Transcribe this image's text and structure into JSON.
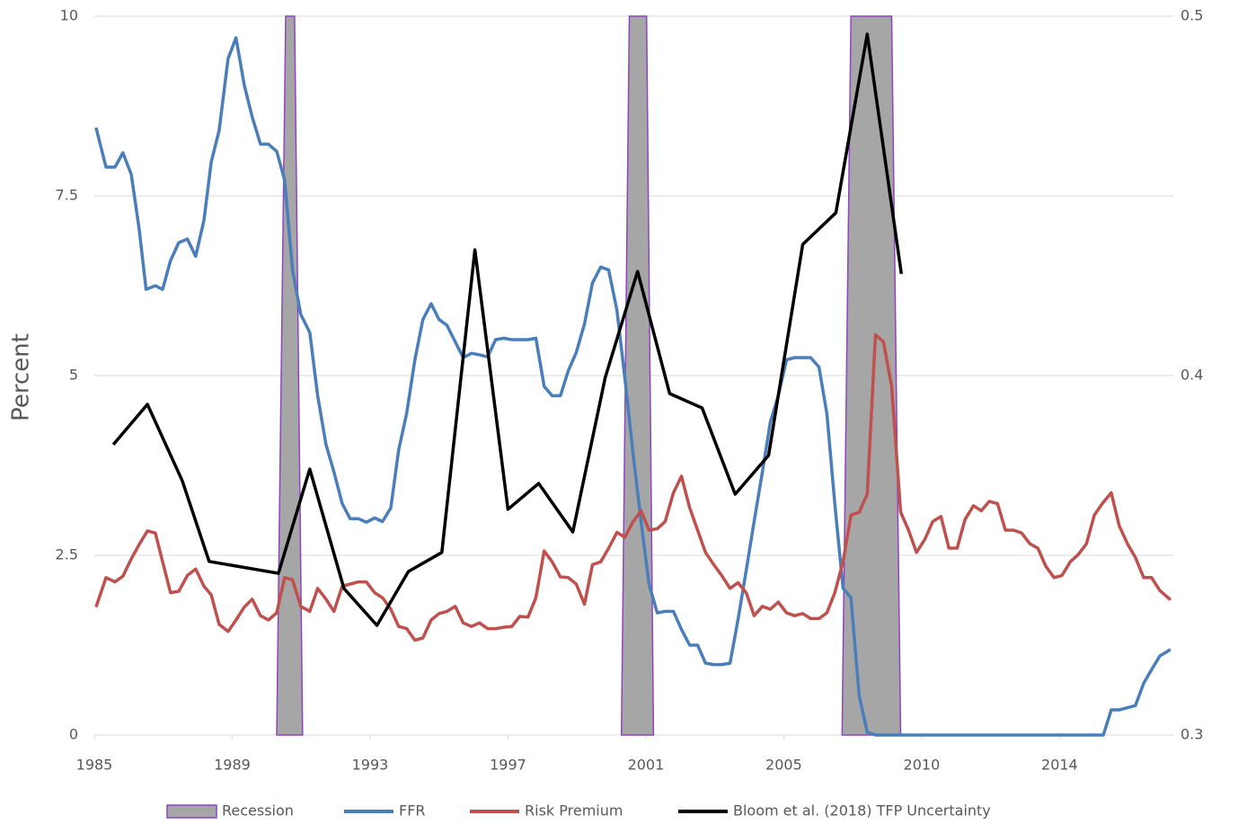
{
  "chart_data": {
    "type": "line",
    "y_label": "Percent",
    "xlim": [
      1985,
      2016.3
    ],
    "xticks": [
      1985,
      1989,
      1993,
      1997,
      2001,
      2005,
      {
        "value": 2009,
        "label": "2010"
      },
      {
        "value": 2013,
        "label": "2014"
      }
    ],
    "ylim": [
      0,
      10
    ],
    "yticks": [
      0,
      2.5,
      5,
      7.5,
      10
    ],
    "y2lim": [
      0.3,
      0.5
    ],
    "y2ticks": [
      0.3,
      0.4,
      0.5
    ],
    "grid": true,
    "legend": "bottom",
    "series": [
      {
        "name": "Recession",
        "kind": "area",
        "color": "#a6a6a6",
        "edge_color": "#8e44c4",
        "x": [
          1990.29,
          1990.55,
          1990.81,
          1991.04,
          null,
          2000.29,
          2000.52,
          2001.02,
          2001.22,
          null,
          2006.69,
          2006.95,
          2008.13,
          2008.39
        ],
        "values": [
          0,
          10,
          10,
          0,
          null,
          0,
          10,
          10,
          0,
          null,
          0,
          10,
          10,
          0
        ]
      },
      {
        "name": "FFR",
        "color": "#4a7ebb",
        "x": [
          1985.05,
          1985.34,
          1985.6,
          1985.83,
          1986.07,
          1986.3,
          1986.5,
          1986.77,
          1986.98,
          1987.21,
          1987.45,
          1987.7,
          1987.94,
          1988.18,
          1988.39,
          1988.62,
          1988.88,
          1989.11,
          1989.35,
          1989.58,
          1989.82,
          1990.05,
          1990.29,
          1990.52,
          1990.75,
          1990.99,
          1991.25,
          1991.48,
          1991.72,
          1991.95,
          1992.19,
          1992.42,
          1992.66,
          1992.89,
          1993.13,
          1993.36,
          1993.6,
          1993.83,
          1994.06,
          1994.3,
          1994.53,
          1994.77,
          1995.0,
          1995.23,
          1995.47,
          1995.7,
          1995.94,
          1996.17,
          1996.41,
          1996.64,
          1996.88,
          1997.11,
          1997.34,
          1997.58,
          1997.81,
          1998.05,
          1998.28,
          1998.52,
          1998.75,
          1998.98,
          1999.22,
          1999.45,
          1999.69,
          1999.92,
          2000.16,
          2000.39,
          2000.63,
          2000.86,
          2001.09,
          2001.33,
          2001.56,
          2001.8,
          2002.03,
          2002.27,
          2002.5,
          2002.73,
          2002.97,
          2003.2,
          2003.44,
          2003.67,
          2003.91,
          2004.14,
          2004.38,
          2004.61,
          2004.84,
          2005.08,
          2005.31,
          2005.55,
          2005.78,
          2006.02,
          2006.25,
          2006.48,
          2006.72,
          2006.95,
          2007.19,
          2007.42,
          2007.66,
          2014.27,
          2014.5,
          2014.73,
          2014.97,
          2015.2,
          2015.44,
          2015.67,
          2015.91,
          2016.22
        ],
        "values": [
          8.45,
          7.9,
          7.9,
          8.1,
          7.8,
          7.04,
          6.2,
          6.25,
          6.2,
          6.6,
          6.85,
          6.9,
          6.66,
          7.16,
          7.97,
          8.41,
          9.41,
          9.7,
          9.04,
          8.6,
          8.22,
          8.22,
          8.12,
          7.72,
          6.47,
          5.85,
          5.6,
          4.72,
          4.04,
          3.66,
          3.22,
          3.01,
          3.01,
          2.96,
          3.02,
          2.97,
          3.16,
          3.97,
          4.47,
          5.22,
          5.78,
          6.0,
          5.78,
          5.7,
          5.47,
          5.25,
          5.31,
          5.29,
          5.26,
          5.5,
          5.52,
          5.5,
          5.5,
          5.5,
          5.52,
          4.85,
          4.72,
          4.72,
          5.07,
          5.32,
          5.72,
          6.29,
          6.51,
          6.47,
          5.91,
          4.97,
          3.91,
          2.97,
          2.1,
          1.7,
          1.72,
          1.72,
          1.47,
          1.25,
          1.25,
          1.0,
          0.98,
          0.98,
          1.0,
          1.6,
          2.29,
          2.97,
          3.66,
          4.35,
          4.72,
          5.22,
          5.25,
          5.25,
          5.25,
          5.12,
          4.47,
          3.22,
          2.04,
          1.91,
          0.54,
          0.04,
          0,
          0,
          0.35,
          0.35,
          0.38,
          0.41,
          0.72,
          0.91,
          1.1,
          1.19
        ]
      },
      {
        "name": "Risk Premium",
        "color": "#c0504d",
        "x": [
          1985.05,
          1985.34,
          1985.6,
          1985.83,
          1986.07,
          1986.3,
          1986.54,
          1986.77,
          1986.98,
          1987.21,
          1987.45,
          1987.7,
          1987.94,
          1988.18,
          1988.39,
          1988.62,
          1988.88,
          1989.11,
          1989.35,
          1989.58,
          1989.82,
          1990.05,
          1990.29,
          1990.52,
          1990.75,
          1990.99,
          1991.25,
          1991.48,
          1991.72,
          1991.95,
          1992.19,
          1992.42,
          1992.66,
          1992.89,
          1993.13,
          1993.36,
          1993.6,
          1993.83,
          1994.06,
          1994.3,
          1994.53,
          1994.77,
          1995.0,
          1995.23,
          1995.47,
          1995.7,
          1995.94,
          1996.17,
          1996.41,
          1996.64,
          1996.88,
          1997.11,
          1997.34,
          1997.58,
          1997.81,
          1998.05,
          1998.28,
          1998.52,
          1998.75,
          1998.98,
          1999.22,
          1999.45,
          1999.69,
          1999.92,
          2000.16,
          2000.39,
          2000.63,
          2000.86,
          2001.09,
          2001.33,
          2001.56,
          2001.8,
          2002.03,
          2002.27,
          2002.5,
          2002.73,
          2002.97,
          2003.2,
          2003.44,
          2003.67,
          2003.91,
          2004.14,
          2004.38,
          2004.61,
          2004.84,
          2005.08,
          2005.31,
          2005.55,
          2005.78,
          2006.02,
          2006.25,
          2006.48,
          2006.72,
          2006.95,
          2007.19,
          2007.42,
          2007.66,
          2007.89,
          2008.13,
          2008.39,
          2008.62,
          2008.85,
          2009.09,
          2009.32,
          2009.56,
          2009.79,
          2010.03,
          2010.26,
          2010.5,
          2010.73,
          2010.96,
          2011.2,
          2011.43,
          2011.67,
          2011.9,
          2012.14,
          2012.37,
          2012.6,
          2012.84,
          2013.07,
          2013.31,
          2013.54,
          2013.78,
          2014.01,
          2014.24,
          2014.5,
          2014.73,
          2014.97,
          2015.2,
          2015.44,
          2015.67,
          2015.91,
          2016.22
        ],
        "values": [
          1.78,
          2.19,
          2.13,
          2.21,
          2.45,
          2.65,
          2.84,
          2.81,
          2.41,
          1.98,
          2.0,
          2.22,
          2.31,
          2.07,
          1.95,
          1.54,
          1.44,
          1.6,
          1.78,
          1.89,
          1.66,
          1.6,
          1.7,
          2.19,
          2.16,
          1.79,
          1.72,
          2.04,
          1.89,
          1.72,
          2.07,
          2.1,
          2.13,
          2.13,
          1.98,
          1.91,
          1.75,
          1.51,
          1.48,
          1.32,
          1.35,
          1.6,
          1.69,
          1.72,
          1.79,
          1.56,
          1.51,
          1.56,
          1.48,
          1.48,
          1.5,
          1.51,
          1.65,
          1.64,
          1.91,
          2.56,
          2.41,
          2.2,
          2.19,
          2.1,
          1.82,
          2.37,
          2.41,
          2.6,
          2.82,
          2.75,
          2.97,
          3.12,
          2.85,
          2.87,
          2.97,
          3.37,
          3.6,
          3.16,
          2.85,
          2.54,
          2.37,
          2.22,
          2.04,
          2.12,
          1.98,
          1.66,
          1.79,
          1.75,
          1.85,
          1.7,
          1.66,
          1.69,
          1.62,
          1.62,
          1.7,
          1.98,
          2.41,
          3.06,
          3.1,
          3.35,
          5.57,
          5.47,
          4.85,
          3.1,
          2.85,
          2.54,
          2.72,
          2.97,
          3.04,
          2.6,
          2.6,
          3.0,
          3.19,
          3.12,
          3.25,
          3.22,
          2.85,
          2.85,
          2.81,
          2.66,
          2.6,
          2.35,
          2.19,
          2.22,
          2.41,
          2.51,
          2.66,
          3.06,
          3.22,
          3.37,
          2.91,
          2.66,
          2.47,
          2.19,
          2.19,
          2.01,
          1.88
        ]
      },
      {
        "name": "Bloom et al. (2018) TFP Uncertainty",
        "color": "#000000",
        "axis": "y2",
        "x": [
          1985.55,
          1986.54,
          1987.55,
          1988.33,
          1990.34,
          1991.25,
          1992.24,
          1993.2,
          1994.11,
          1995.08,
          1996.04,
          1997.0,
          1997.89,
          1998.88,
          1999.82,
          2000.76,
          2001.69,
          2002.63,
          2003.59,
          2004.56,
          2005.55,
          2006.51,
          2007.42,
          2008.41
        ],
        "values": [
          0.3808,
          0.392,
          0.3708,
          0.3483,
          0.345,
          0.374,
          0.3408,
          0.3305,
          0.3455,
          0.3508,
          0.435,
          0.3628,
          0.37,
          0.3565,
          0.3995,
          0.429,
          0.395,
          0.391,
          0.367,
          0.3778,
          0.4365,
          0.4453,
          0.495,
          0.4283
        ]
      }
    ]
  }
}
